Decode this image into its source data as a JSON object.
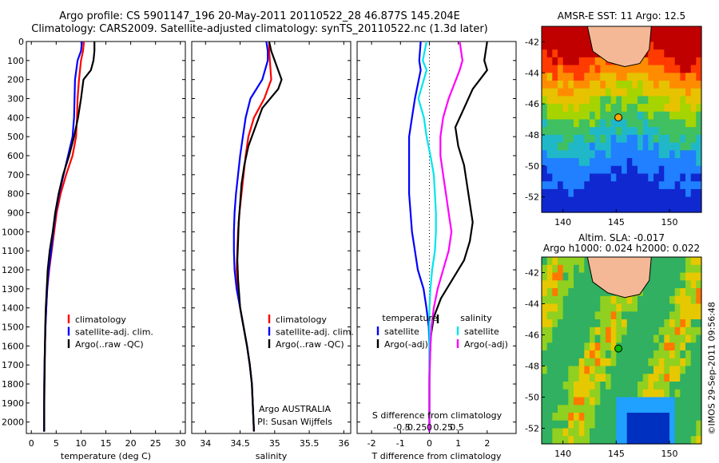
{
  "header": {
    "title_line1": "Argo profile: CS 5901147_196 20-May-2011 20110522_28 46.877S 145.204E",
    "title_line2": "Climatology: CARS2009. Satellite-adjusted climatology: synTS_20110522.nc (1.3d later)"
  },
  "colors": {
    "climatology": "#ff0000",
    "satellite": "#0000ff",
    "argo": "#000000",
    "salinity_sat": "#00e5ee",
    "salinity_argo": "#ff00ff"
  },
  "chart_data": [
    {
      "id": "temperature",
      "type": "line",
      "xlabel": "temperature (deg C)",
      "ylabel": "",
      "xlim": [
        -1,
        31
      ],
      "ylim": [
        2060,
        0
      ],
      "xticks": [
        0,
        5,
        10,
        15,
        20,
        25,
        30
      ],
      "xtick_labels": [
        "0",
        "5",
        "10",
        "15",
        "20",
        "25",
        "30"
      ],
      "yticks": [
        0,
        100,
        200,
        300,
        400,
        500,
        600,
        700,
        800,
        900,
        1000,
        1100,
        1200,
        1300,
        1400,
        1500,
        1600,
        1700,
        1800,
        1900,
        2000
      ],
      "ytick_labels": [
        "0",
        "100",
        "200",
        "300",
        "400",
        "500",
        "600",
        "700",
        "800",
        "900",
        "1000",
        "1100",
        "1200",
        "1300",
        "1400",
        "1500",
        "1600",
        "1700",
        "1800",
        "1900",
        "2000"
      ],
      "legend": [
        "climatology",
        "satellite-adj. clim.",
        "Argo(..raw -QC)"
      ],
      "series": [
        {
          "name": "climatology",
          "color": "#ff0000",
          "x": [
            10.6,
            10.4,
            10.0,
            9.6,
            9.3,
            9.2,
            9.0,
            8.3,
            7.0,
            5.9,
            5.1,
            4.6,
            4.1,
            3.6,
            3.2,
            3.0,
            2.85,
            2.75,
            2.65,
            2.6,
            2.55
          ],
          "y": [
            0,
            50,
            100,
            200,
            300,
            400,
            500,
            600,
            700,
            800,
            900,
            1000,
            1100,
            1200,
            1300,
            1400,
            1500,
            1600,
            1700,
            1800,
            2050
          ]
        },
        {
          "name": "satellite-adj. clim.",
          "color": "#0000ff",
          "x": [
            10.2,
            10.0,
            9.3,
            8.8,
            8.7,
            8.6,
            8.3,
            7.4,
            6.5,
            5.6,
            4.9,
            4.4,
            4.0,
            3.5,
            3.2,
            3.0,
            2.85,
            2.75,
            2.65,
            2.6,
            2.55
          ],
          "y": [
            0,
            50,
            100,
            200,
            300,
            400,
            500,
            600,
            700,
            800,
            900,
            1000,
            1100,
            1200,
            1300,
            1400,
            1500,
            1600,
            1700,
            1800,
            2050
          ]
        },
        {
          "name": "Argo(..raw -QC)",
          "color": "#000000",
          "x": [
            12.7,
            12.7,
            12.5,
            12.0,
            10.5,
            10.0,
            9.4,
            8.6,
            7.6,
            6.4,
            5.5,
            4.8,
            4.3,
            3.7,
            3.3,
            3.1,
            2.9,
            2.8,
            2.7,
            2.6,
            2.6
          ],
          "y": [
            0,
            50,
            100,
            150,
            200,
            300,
            400,
            500,
            600,
            700,
            800,
            900,
            1000,
            1100,
            1200,
            1300,
            1400,
            1500,
            1700,
            1900,
            2050
          ]
        }
      ]
    },
    {
      "id": "salinity",
      "type": "line",
      "xlabel": "salinity",
      "xlim": [
        33.8,
        36.1
      ],
      "ylim": [
        2060,
        0
      ],
      "xticks": [
        34,
        34.5,
        35,
        35.5,
        36
      ],
      "xtick_labels": [
        "34",
        "34.5",
        "35",
        "35.5",
        "36"
      ],
      "legend": [
        "climatology",
        "satellite-adj. clim.",
        "Argo(..raw -QC)"
      ],
      "annotation": [
        "Argo AUSTRALIA",
        "PI: Susan Wijffels"
      ],
      "series": [
        {
          "name": "climatology",
          "color": "#ff0000",
          "x": [
            34.92,
            34.92,
            34.93,
            34.95,
            34.85,
            34.7,
            34.62,
            34.58,
            34.55,
            34.52,
            34.49,
            34.47,
            34.46,
            34.45,
            34.47,
            34.5,
            34.55,
            34.6,
            34.64,
            34.67,
            34.7
          ],
          "y": [
            0,
            50,
            100,
            200,
            300,
            400,
            500,
            600,
            700,
            800,
            900,
            1000,
            1100,
            1200,
            1300,
            1400,
            1500,
            1600,
            1700,
            1800,
            2050
          ]
        },
        {
          "name": "satellite-adj. clim.",
          "color": "#0000ff",
          "x": [
            34.88,
            34.9,
            34.9,
            34.82,
            34.65,
            34.58,
            34.54,
            34.5,
            34.47,
            34.44,
            34.42,
            34.41,
            34.41,
            34.42,
            34.45,
            34.5,
            34.55,
            34.6,
            34.64,
            34.67,
            34.7
          ],
          "y": [
            0,
            50,
            100,
            200,
            300,
            400,
            500,
            600,
            700,
            800,
            900,
            1000,
            1100,
            1200,
            1300,
            1400,
            1500,
            1600,
            1700,
            1800,
            2050
          ]
        },
        {
          "name": "Argo(..raw -QC)",
          "color": "#000000",
          "x": [
            34.92,
            34.95,
            35.0,
            35.1,
            35.05,
            34.82,
            34.72,
            34.62,
            34.56,
            34.52,
            34.5,
            34.48,
            34.47,
            34.46,
            34.47,
            34.5,
            34.55,
            34.6,
            34.64,
            34.67,
            34.7
          ],
          "y": [
            0,
            50,
            100,
            200,
            250,
            350,
            450,
            550,
            650,
            750,
            850,
            950,
            1050,
            1150,
            1250,
            1400,
            1500,
            1600,
            1700,
            1800,
            2050
          ]
        }
      ]
    },
    {
      "id": "difference",
      "type": "line",
      "xlabel": "T difference from climatology",
      "top_label": "S difference from climatology",
      "xlim": [
        -2.5,
        3
      ],
      "ylim": [
        2060,
        0
      ],
      "xticks": [
        -2,
        -1,
        0,
        1,
        2
      ],
      "xtick_labels": [
        "-2",
        "-1",
        "0",
        "1",
        "2"
      ],
      "sticks": [
        -0.5,
        -0.25,
        0,
        0.25,
        0.5
      ],
      "stick_labels": [
        "-0.5",
        "-0.25",
        "0",
        "0.25",
        "0.5"
      ],
      "legend_headers": [
        "temperature",
        "salinity"
      ],
      "legend": [
        "satellite",
        "Argo(-adj)",
        "satellite",
        "Argo(-adj)"
      ],
      "series": [
        {
          "name": "satellite",
          "group": "temperature",
          "color": "#0000ff",
          "x": [
            -0.3,
            -0.35,
            -0.3,
            -0.5,
            -0.6,
            -0.7,
            -0.7,
            -0.7,
            -0.7,
            -0.65,
            -0.6,
            -0.5,
            -0.4,
            -0.2,
            -0.1,
            -0.02,
            0,
            0,
            0,
            0,
            0
          ],
          "y": [
            0,
            100,
            150,
            300,
            400,
            500,
            600,
            700,
            800,
            900,
            1000,
            1100,
            1200,
            1300,
            1400,
            1500,
            1600,
            1700,
            1800,
            1900,
            2050
          ]
        },
        {
          "name": "Argo(-adj)",
          "group": "temperature",
          "color": "#000000",
          "x": [
            2.0,
            1.9,
            2.0,
            1.5,
            1.2,
            0.9,
            1.0,
            1.2,
            1.3,
            1.4,
            1.5,
            1.4,
            1.2,
            0.8,
            0.4,
            0.15,
            0.05,
            0.02,
            0,
            0,
            0
          ],
          "y": [
            0,
            100,
            150,
            250,
            350,
            450,
            550,
            650,
            750,
            850,
            950,
            1050,
            1150,
            1250,
            1350,
            1450,
            1550,
            1650,
            1750,
            1850,
            2050
          ]
        },
        {
          "name": "satellite",
          "group": "salinity",
          "color": "#00e5ee",
          "x": [
            -0.05,
            -0.12,
            -0.05,
            -0.2,
            -0.1,
            -0.05,
            0.02,
            0.08,
            0.1,
            0.12,
            0.12,
            0.1,
            0.05,
            0.02,
            0,
            0,
            0,
            0,
            0,
            0,
            0
          ],
          "y": [
            0,
            100,
            150,
            300,
            400,
            500,
            600,
            700,
            800,
            900,
            1000,
            1100,
            1200,
            1300,
            1400,
            1500,
            1600,
            1700,
            1800,
            1900,
            2050
          ]
        },
        {
          "name": "Argo(-adj)",
          "group": "salinity",
          "color": "#ff00ff",
          "x": [
            0.55,
            0.6,
            0.55,
            0.35,
            0.25,
            0.2,
            0.2,
            0.25,
            0.3,
            0.35,
            0.4,
            0.35,
            0.25,
            0.15,
            0.08,
            0.04,
            0.02,
            0.01,
            0,
            0,
            0
          ],
          "y": [
            0,
            100,
            150,
            300,
            400,
            500,
            600,
            700,
            800,
            900,
            1000,
            1100,
            1200,
            1300,
            1400,
            1500,
            1600,
            1700,
            1800,
            1900,
            2050
          ]
        }
      ]
    },
    {
      "id": "sst_map",
      "type": "heatmap",
      "title": "AMSR-E SST: 11 Argo: 12.5",
      "xlim": [
        138,
        153
      ],
      "ylim": [
        -53,
        -41
      ],
      "xticks": [
        140,
        145,
        150
      ],
      "xtick_labels": [
        "140",
        "145",
        "150"
      ],
      "yticks": [
        -42,
        -44,
        -46,
        -48,
        -50,
        -52
      ],
      "ytick_labels": [
        "-42",
        "-44",
        "-46",
        "-48",
        "-50",
        "-52"
      ],
      "marker": {
        "lon": 145.204,
        "lat": -46.877
      }
    },
    {
      "id": "sla_map",
      "type": "heatmap",
      "title": "Altim. SLA: -0.017",
      "subtitle": "Argo h1000: 0.024 h2000: 0.022",
      "xlim": [
        138,
        153
      ],
      "ylim": [
        -53,
        -41
      ],
      "xticks": [
        140,
        145,
        150
      ],
      "xtick_labels": [
        "140",
        "145",
        "150"
      ],
      "yticks": [
        -42,
        -44,
        -46,
        -48,
        -50,
        -52
      ],
      "ytick_labels": [
        "-42",
        "-44",
        "-46",
        "-48",
        "-50",
        "-52"
      ],
      "marker": {
        "lon": 145.204,
        "lat": -46.877
      }
    }
  ],
  "footer": {
    "credit": "©IMOS 29-Sep-2011 09:56:48"
  }
}
